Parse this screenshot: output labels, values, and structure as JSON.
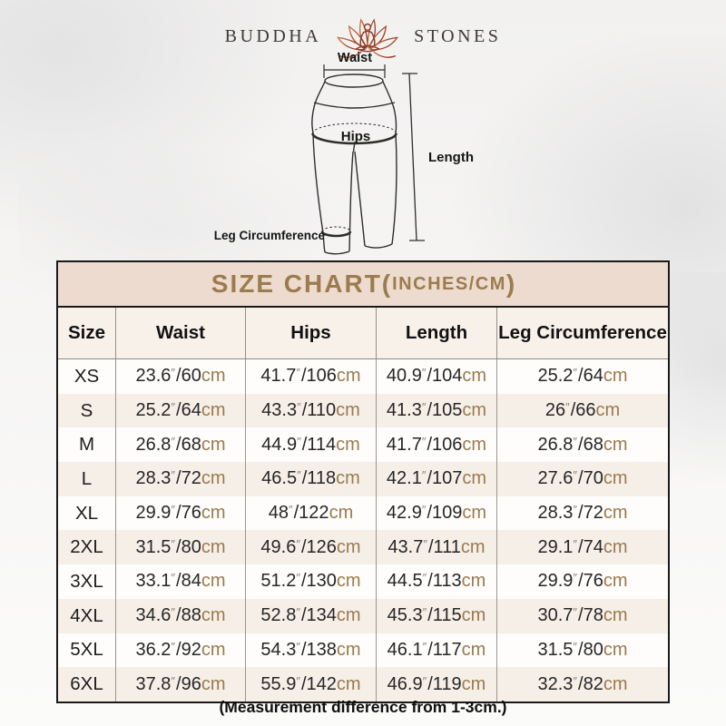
{
  "brand": {
    "left": "BUDDHA",
    "right": "STONES",
    "logo_icon": "lotus-meditation-icon"
  },
  "diagram": {
    "waist": "Waist",
    "hips": "Hips",
    "length": "Length",
    "leg_circumference": "Leg Circumference"
  },
  "chart": {
    "title": "SIZE CHART(",
    "title_unit": "INCHES/CM",
    "title_close": ")",
    "columns": [
      "Size",
      "Waist",
      "Hips",
      "Length",
      "Leg Circumference"
    ],
    "inch_mark": "″",
    "slash": "/",
    "cm_label": "cm",
    "rows": [
      {
        "size": "XS",
        "cells": [
          [
            "23.6",
            "60"
          ],
          [
            "41.7",
            "106"
          ],
          [
            "40.9",
            "104"
          ],
          [
            "25.2",
            "64"
          ]
        ]
      },
      {
        "size": "S",
        "cells": [
          [
            "25.2",
            "64"
          ],
          [
            "43.3",
            "110"
          ],
          [
            "41.3",
            "105"
          ],
          [
            "26",
            "66"
          ]
        ]
      },
      {
        "size": "M",
        "cells": [
          [
            "26.8",
            "68"
          ],
          [
            "44.9",
            "114"
          ],
          [
            "41.7",
            "106"
          ],
          [
            "26.8",
            "68"
          ]
        ]
      },
      {
        "size": "L",
        "cells": [
          [
            "28.3",
            "72"
          ],
          [
            "46.5",
            "118"
          ],
          [
            "42.1",
            "107"
          ],
          [
            "27.6",
            "70"
          ]
        ]
      },
      {
        "size": "XL",
        "cells": [
          [
            "29.9",
            "76"
          ],
          [
            "48",
            "122"
          ],
          [
            "42.9",
            "109"
          ],
          [
            "28.3",
            "72"
          ]
        ]
      },
      {
        "size": "2XL",
        "cells": [
          [
            "31.5",
            "80"
          ],
          [
            "49.6",
            "126"
          ],
          [
            "43.7",
            "111"
          ],
          [
            "29.1",
            "74"
          ]
        ]
      },
      {
        "size": "3XL",
        "cells": [
          [
            "33.1",
            "84"
          ],
          [
            "51.2",
            "130"
          ],
          [
            "44.5",
            "113"
          ],
          [
            "29.9",
            "76"
          ]
        ]
      },
      {
        "size": "4XL",
        "cells": [
          [
            "34.6",
            "88"
          ],
          [
            "52.8",
            "134"
          ],
          [
            "45.3",
            "115"
          ],
          [
            "30.7",
            "78"
          ]
        ]
      },
      {
        "size": "5XL",
        "cells": [
          [
            "36.2",
            "92"
          ],
          [
            "54.3",
            "138"
          ],
          [
            "46.1",
            "117"
          ],
          [
            "31.5",
            "80"
          ]
        ]
      },
      {
        "size": "6XL",
        "cells": [
          [
            "37.8",
            "96"
          ],
          [
            "55.9",
            "142"
          ],
          [
            "46.9",
            "119"
          ],
          [
            "32.3",
            "82"
          ]
        ]
      }
    ]
  },
  "footer": {
    "note": "(Measurement difference from 1-3cm.)"
  },
  "colors": {
    "accent_gold": "#9c7c4e",
    "unit_cm_tan": "#9a7a4e",
    "title_bar_bg": "#ecdbce",
    "row_alt_bg": "#f6efe7",
    "header_row_bg": "#f7f1ea",
    "border_dark": "#1a1a1a",
    "divider_gray": "#9b958f",
    "logo_red_dark": "#8a2f20",
    "logo_red_light": "#c4703e",
    "brand_text": "#3d3a37"
  }
}
